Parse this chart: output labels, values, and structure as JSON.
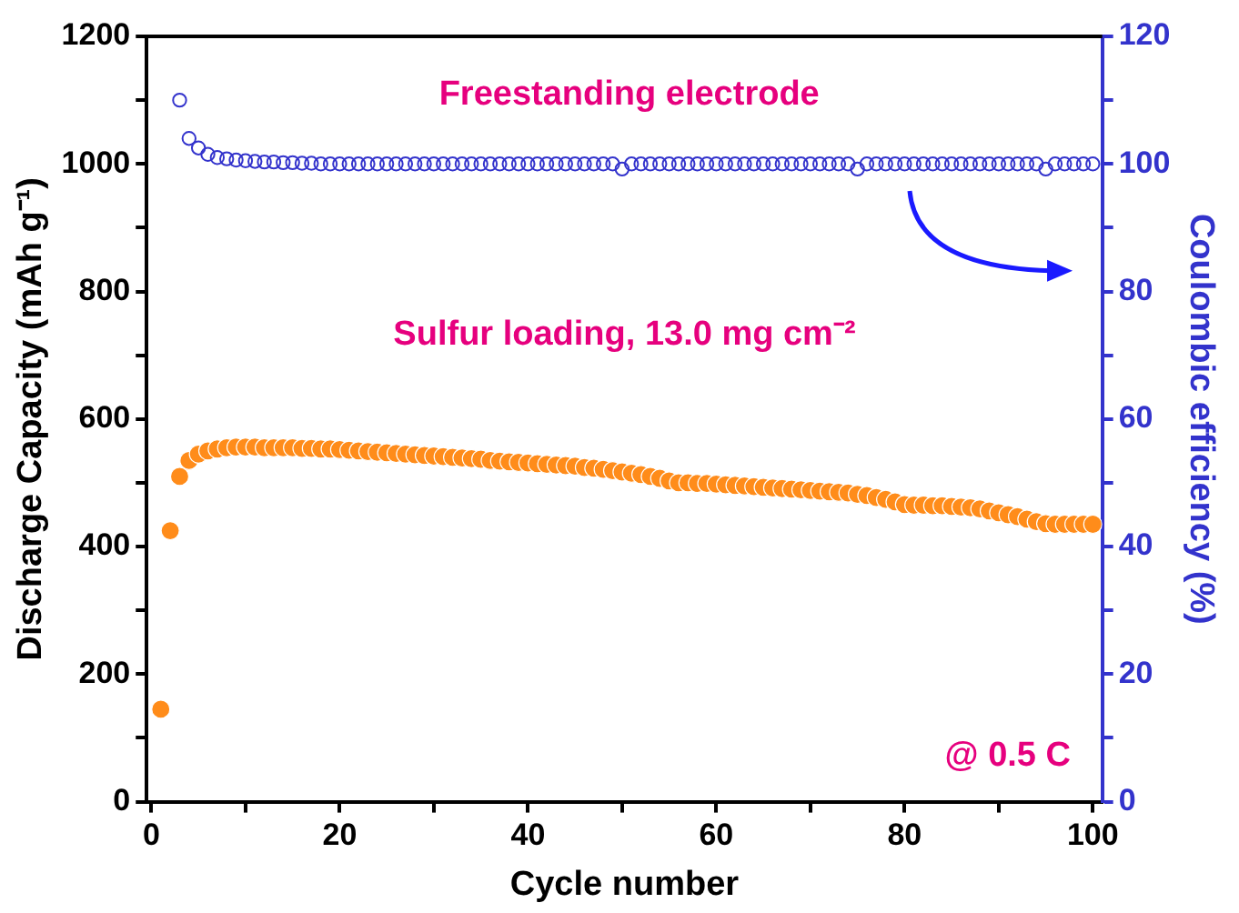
{
  "chart_data": {
    "type": "scatter",
    "xlabel": "Cycle number",
    "ylabel": "Discharge Capacity (mAh g⁻¹)",
    "y2label": "Coulombic efficiency (%)",
    "x": [
      1,
      2,
      3,
      4,
      5,
      6,
      7,
      8,
      9,
      10,
      11,
      12,
      13,
      14,
      15,
      16,
      17,
      18,
      19,
      20,
      21,
      22,
      23,
      24,
      25,
      26,
      27,
      28,
      29,
      30,
      31,
      32,
      33,
      34,
      35,
      36,
      37,
      38,
      39,
      40,
      41,
      42,
      43,
      44,
      45,
      46,
      47,
      48,
      49,
      50,
      51,
      52,
      53,
      54,
      55,
      56,
      57,
      58,
      59,
      60,
      61,
      62,
      63,
      64,
      65,
      66,
      67,
      68,
      69,
      70,
      71,
      72,
      73,
      74,
      75,
      76,
      77,
      78,
      79,
      80,
      81,
      82,
      83,
      84,
      85,
      86,
      87,
      88,
      89,
      90,
      91,
      92,
      93,
      94,
      95,
      96,
      97,
      98,
      99,
      100
    ],
    "series": [
      {
        "color": "#ff8c1a",
        "values": [
          145,
          425,
          510,
          535,
          545,
          550,
          553,
          555,
          556,
          556,
          556,
          555,
          555,
          555,
          555,
          554,
          554,
          553,
          553,
          552,
          551,
          550,
          549,
          548,
          547,
          546,
          545,
          544,
          543,
          542,
          541,
          540,
          539,
          538,
          537,
          535,
          534,
          533,
          532,
          531,
          530,
          529,
          528,
          527,
          526,
          524,
          523,
          521,
          519,
          517,
          515,
          513,
          510,
          507,
          503,
          500,
          500,
          499,
          499,
          498,
          497,
          496,
          495,
          494,
          493,
          492,
          491,
          490,
          489,
          488,
          487,
          486,
          485,
          484,
          482,
          480,
          477,
          474,
          470,
          466,
          465,
          465,
          464,
          464,
          463,
          462,
          461,
          459,
          456,
          453,
          450,
          447,
          443,
          439,
          436,
          435,
          435,
          435,
          435,
          435
        ]
      },
      {
        "color": "#3333cc",
        "axis": "y2",
        "values": [
          null,
          null,
          110,
          104,
          102.5,
          101.5,
          101,
          100.8,
          100.6,
          100.5,
          100.4,
          100.3,
          100.3,
          100.2,
          100.2,
          100.1,
          100.1,
          100,
          100,
          100,
          100,
          100,
          100,
          100,
          100,
          100,
          100,
          100,
          100,
          100,
          100,
          100,
          100,
          100,
          100,
          100,
          100,
          100,
          100,
          100,
          100,
          100,
          100,
          100,
          100,
          100,
          100,
          100,
          100,
          99.2,
          100,
          100,
          100,
          100,
          100,
          100,
          100,
          100,
          100,
          100,
          100,
          100,
          100,
          100,
          100,
          100,
          100,
          100,
          100,
          100,
          100,
          100,
          100,
          100,
          99.2,
          100,
          100,
          100,
          100,
          100,
          100,
          100,
          100,
          100,
          100,
          100,
          100,
          100,
          100,
          100,
          100,
          100,
          100,
          100,
          99.2,
          100,
          100,
          100,
          100,
          100
        ]
      }
    ],
    "xlim": [
      -0.5,
      101
    ],
    "xticks": [
      0,
      {
        "value": 10,
        "label": null
      },
      20,
      {
        "value": 30,
        "label": null
      },
      40,
      {
        "value": 50,
        "label": null
      },
      60,
      {
        "value": 70,
        "label": null
      },
      80,
      {
        "value": 90,
        "label": null
      },
      100
    ],
    "ylim": [
      0,
      1200
    ],
    "yticks": [
      0,
      {
        "value": 100,
        "label": null
      },
      200,
      {
        "value": 300,
        "label": null
      },
      400,
      {
        "value": 500,
        "label": null
      },
      600,
      {
        "value": 700,
        "label": null
      },
      800,
      {
        "value": 900,
        "label": null
      },
      1000,
      {
        "value": 1100,
        "label": null
      },
      1200
    ],
    "y2lim": [
      0,
      120
    ],
    "y2ticks": [
      0,
      {
        "value": 10,
        "label": null
      },
      20,
      {
        "value": 30,
        "label": null
      },
      40,
      {
        "value": 50,
        "label": null
      },
      60,
      {
        "value": 70,
        "label": null
      },
      80,
      {
        "value": 90,
        "label": null
      },
      100,
      {
        "value": 110,
        "label": null
      },
      120
    ],
    "annotations": [
      "Freestanding electrode",
      "Sulfur loading, 13.0 mg cm⁻²",
      "@ 0.5 C"
    ],
    "marker": "circle",
    "legend": false,
    "grid": false
  }
}
